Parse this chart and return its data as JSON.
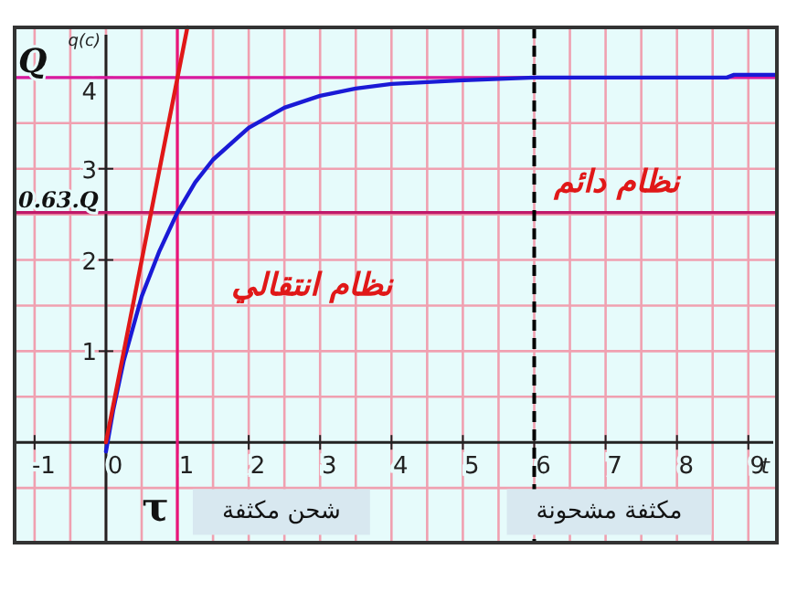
{
  "chart_data": {
    "type": "line",
    "xlabel": "t",
    "ylabel": "q(c)",
    "xlim": [
      -1.28,
      9.4
    ],
    "ylim": [
      -1.1,
      4.55
    ],
    "xticks": [
      -1,
      {
        "value": -0.5,
        "label": null
      },
      {
        "value": 0,
        "label": "0"
      },
      {
        "value": 0.5,
        "label": null
      },
      1,
      {
        "value": 1.5,
        "label": null
      },
      2,
      {
        "value": 2.5,
        "label": null
      },
      3,
      {
        "value": 3.5,
        "label": null
      },
      4,
      {
        "value": 4.5,
        "label": null
      },
      5,
      {
        "value": 5.5,
        "label": null
      },
      6,
      {
        "value": 6.5,
        "label": null
      },
      7,
      {
        "value": 7.5,
        "label": null
      },
      8,
      {
        "value": 8.5,
        "label": null
      },
      9
    ],
    "yticks": [
      {
        "value": -0.5,
        "label": null
      },
      {
        "value": 0.5,
        "label": null
      },
      1,
      {
        "value": 1.5,
        "label": null
      },
      2,
      {
        "value": 2.5,
        "label": null
      },
      3,
      {
        "value": 3.5,
        "label": null
      },
      4
    ],
    "grid": true,
    "series": [
      {
        "color": "#1a1ad6",
        "x": [
          0,
          0.1,
          0.25,
          0.5,
          0.75,
          1,
          1.25,
          1.5,
          2,
          2.5,
          3,
          3.5,
          4,
          5,
          6,
          7,
          8,
          8.7,
          8.8,
          9.4
        ],
        "values": [
          -0.1,
          0.35,
          0.9,
          1.6,
          2.1,
          2.52,
          2.85,
          3.1,
          3.45,
          3.67,
          3.8,
          3.88,
          3.93,
          3.97,
          4.0,
          4.0,
          4.0,
          4.0,
          4.03,
          4.03
        ]
      },
      {
        "color": "#e01818",
        "x": [
          0,
          1.14
        ],
        "values": [
          0,
          4.55
        ]
      }
    ],
    "ref_lines": [
      {
        "axis": "y",
        "value": 4,
        "label": "Q",
        "color": "#d81aa0",
        "line_style": "solid"
      },
      {
        "axis": "y",
        "value": 2.52,
        "label": "0.63.Q",
        "color": "#c0186a",
        "line_style": "solid"
      },
      {
        "axis": "x",
        "value": 1,
        "label": "τ",
        "color": "#e8157a",
        "line_style": "solid"
      },
      {
        "axis": "x",
        "value": 6,
        "color": "#000000",
        "line_style": "dashed"
      }
    ],
    "annotations": [
      "نظام انتقالي",
      "نظام دائم",
      "شحن مكثفة",
      "مكثفة مشحونة"
    ]
  }
}
